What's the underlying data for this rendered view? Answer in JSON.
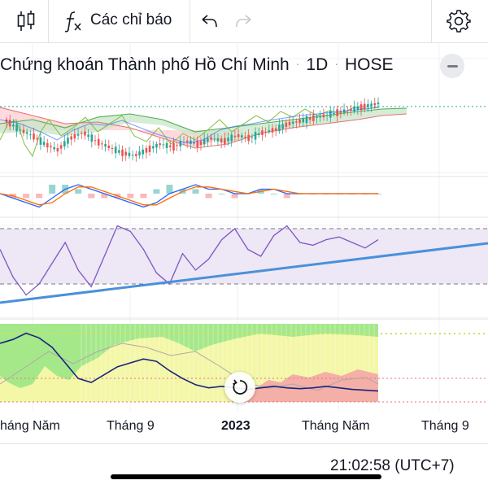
{
  "toolbar": {
    "chart_type_icon": "candlestick-icon",
    "indicators_icon": "function-icon",
    "indicators_label": "Các chỉ báo",
    "undo_icon": "undo-icon",
    "redo_icon": "redo-icon",
    "settings_icon": "gear-icon"
  },
  "symbol": {
    "name": "Chứng khoán Thành phố Hồ Chí Minh",
    "interval": "1D",
    "exchange": "HOSE"
  },
  "colors": {
    "price_up": "#26a69a",
    "price_down": "#ef5350",
    "ichimoku_fast": "#4caf50",
    "ichimoku_slow": "#e57373",
    "cloud_bull": "#c8e6c9",
    "cloud_bear": "#ffcdd2",
    "lagging": "#8bc34a",
    "macd_line": "#2962ff",
    "signal_line": "#ff6d00",
    "rsi_line": "#7e57c2",
    "rsi_band": "#ede7f6",
    "trendline": "#4a90d9",
    "osc_line": "#1a237e",
    "osc_green": "#a5e88a",
    "osc_yellow": "#f3f7a6",
    "osc_red": "#f4a6a6"
  },
  "time_axis": {
    "ticks": [
      "háng Năm",
      "Tháng 9",
      "2023",
      "Tháng Năm",
      "Tháng 9"
    ]
  },
  "status": {
    "clock": "21:02:58 (UTC+7)"
  },
  "chart_data": {
    "type": "line",
    "x_range": [
      "2022-04",
      "2023-10"
    ],
    "panes": [
      {
        "name": "price",
        "series": [
          {
            "values": [
              30,
              27,
              25,
              22,
              20,
              24,
              26,
              23,
              21,
              19,
              18,
              20,
              22,
              21,
              23,
              22,
              24,
              23,
              25,
              24,
              26,
              27,
              29,
              30,
              31,
              32,
              33,
              34,
              35,
              36
            ]
          }
        ]
      },
      {
        "name": "macd",
        "series": [
          {
            "values": [
              0,
              -1,
              -2,
              -3,
              -1,
              1,
              2,
              1,
              0,
              -1,
              -2,
              -3,
              -2,
              0,
              1,
              2,
              1,
              1,
              0,
              0,
              1,
              1,
              0,
              0,
              0,
              0,
              0,
              0,
              0,
              0
            ]
          },
          {
            "values": [
              0,
              -0.5,
              -1.5,
              -2.5,
              -2,
              0,
              1.5,
              1.5,
              0.5,
              -0.5,
              -1.5,
              -2.5,
              -2.5,
              -1,
              0.5,
              1.5,
              1.5,
              1,
              0.5,
              0,
              0.5,
              1,
              0.5,
              0,
              0,
              0,
              0,
              0,
              0,
              0
            ]
          }
        ]
      },
      {
        "name": "rsi",
        "levels": [
          70,
          30
        ],
        "series": [
          {
            "values": [
              55,
              35,
              22,
              30,
              45,
              60,
              40,
              28,
              50,
              72,
              68,
              55,
              38,
              30,
              52,
              40,
              48,
              62,
              70,
              55,
              50,
              65,
              72,
              60,
              58,
              62,
              64,
              60,
              56,
              62
            ]
          }
        ]
      },
      {
        "name": "oscillator",
        "series": [
          {
            "values": [
              75,
              80,
              88,
              82,
              70,
              50,
              30,
              25,
              35,
              45,
              50,
              55,
              52,
              40,
              30,
              22,
              18,
              20,
              18,
              16,
              18,
              20,
              18,
              17,
              18,
              20,
              18,
              16,
              15,
              14
            ]
          }
        ]
      }
    ]
  }
}
